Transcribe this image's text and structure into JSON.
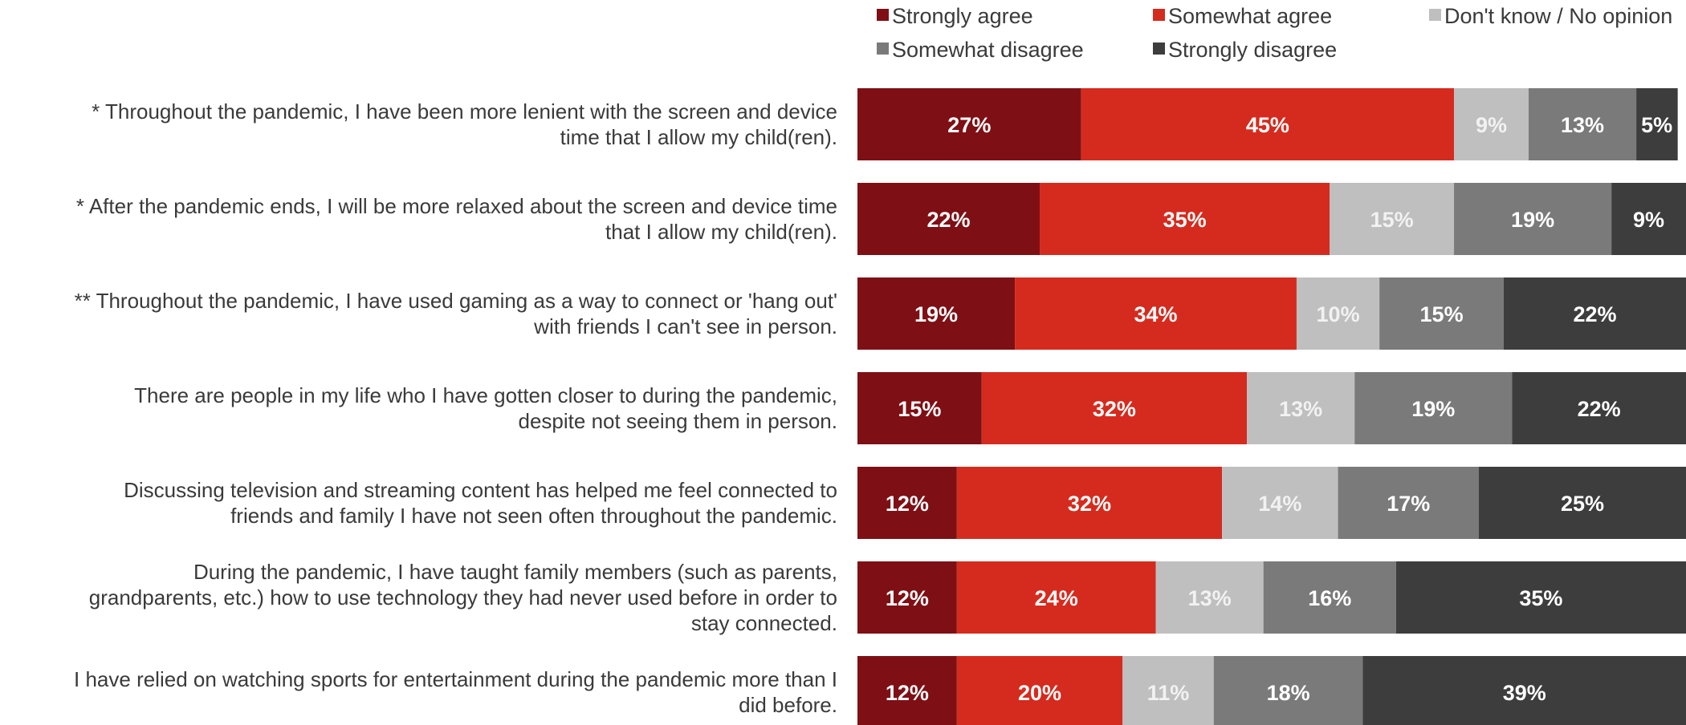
{
  "chart_data": {
    "type": "bar",
    "orientation": "horizontal",
    "stacked": true,
    "legend_position": "top-right",
    "grid": false,
    "xlim": [
      0,
      100
    ],
    "colors": [
      "#7e1015",
      "#d52b1e",
      "#bfbfbf",
      "#7a7a7a",
      "#3d3d3d"
    ],
    "label_colors": [
      "#ffffff",
      "#ffffff",
      "#f2f2f2",
      "#ffffff",
      "#ffffff"
    ],
    "categories": [
      [
        "* Throughout the pandemic, I have been more lenient with the screen and device",
        "time that I allow my child(ren)."
      ],
      [
        "* After the pandemic ends, I will be more relaxed about the screen and device time",
        "that I allow my child(ren)."
      ],
      [
        "** Throughout the pandemic, I have used gaming as a way to connect or 'hang out'",
        "with friends I can't see in person."
      ],
      [
        "There are people in my life who I have gotten closer to during the pandemic,",
        "despite not seeing them in person."
      ],
      [
        "Discussing television and streaming content has helped me feel connected to",
        "friends and family I have not seen often throughout the pandemic."
      ],
      [
        "During the pandemic, I have taught family members (such as parents,",
        "grandparents, etc.) how to use technology they had never used before in order to",
        "stay connected."
      ],
      [
        "I have relied on watching sports for entertainment during the pandemic more than I",
        "did before."
      ]
    ],
    "series": [
      {
        "name": "Strongly agree",
        "values": [
          27,
          22,
          19,
          15,
          12,
          12,
          12
        ]
      },
      {
        "name": "Somewhat agree",
        "values": [
          45,
          35,
          34,
          32,
          32,
          24,
          20
        ]
      },
      {
        "name": "Don't know / No opinion",
        "values": [
          9,
          15,
          10,
          13,
          14,
          13,
          11
        ]
      },
      {
        "name": "Somewhat disagree",
        "values": [
          13,
          19,
          15,
          19,
          17,
          16,
          18
        ]
      },
      {
        "name": "Strongly disagree",
        "values": [
          5,
          9,
          22,
          22,
          25,
          35,
          39
        ]
      }
    ]
  }
}
